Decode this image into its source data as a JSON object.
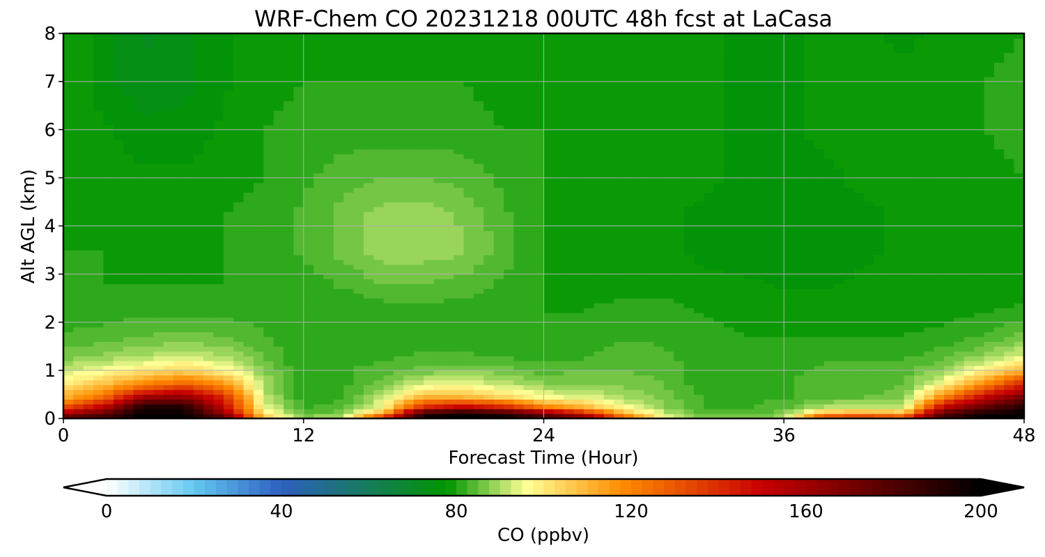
{
  "chart_data": {
    "type": "heatmap",
    "title": "WRF-Chem CO  20231218 00UTC 48h fcst at LaCasa",
    "xlabel": "Forecast Time (Hour)",
    "ylabel": "Alt AGL (km)",
    "xlim": [
      0,
      48
    ],
    "ylim": [
      0,
      8
    ],
    "x_ticks": [
      "0",
      "12",
      "24",
      "36",
      "48"
    ],
    "x_tick_values": [
      0,
      12,
      24,
      36,
      48
    ],
    "y_ticks": [
      "0",
      "1",
      "2",
      "3",
      "4",
      "5",
      "6",
      "7",
      "8"
    ],
    "y_tick_values": [
      0,
      1,
      2,
      3,
      4,
      5,
      6,
      7,
      8
    ],
    "grid": true,
    "colorbar": {
      "label": "CO  (ppbv)",
      "ticks": [
        "0",
        "40",
        "80",
        "120",
        "160",
        "200"
      ],
      "tick_values": [
        0,
        40,
        80,
        120,
        160,
        200
      ],
      "range": [
        0,
        200
      ],
      "extend": "both",
      "colors": [
        "#ffffff",
        "#64c8f0",
        "#2d5fc0",
        "#009600",
        "#ffff96",
        "#ff8c00",
        "#c80000",
        "#000000"
      ],
      "color_stops": [
        0,
        20,
        40,
        78,
        96,
        118,
        150,
        200
      ]
    },
    "x_hours": [
      0,
      2,
      4,
      6,
      8,
      10,
      12,
      14,
      16,
      18,
      20,
      22,
      24,
      26,
      28,
      30,
      32,
      34,
      36,
      38,
      40,
      42,
      44,
      46,
      48
    ],
    "z_km": [
      0,
      0.1,
      0.25,
      0.45,
      0.7,
      1.0,
      1.3,
      1.7,
      2.2,
      2.8,
      3.5,
      4.2,
      5.0,
      6.0,
      7.0,
      8.0
    ],
    "co_ppbv": [
      [
        185,
        190,
        200,
        200,
        185,
        110,
        88,
        94,
        150,
        200,
        200,
        200,
        190,
        175,
        135,
        98,
        88,
        88,
        90,
        145,
        150,
        140,
        190,
        200,
        200
      ],
      [
        160,
        175,
        200,
        200,
        165,
        100,
        84,
        86,
        110,
        190,
        200,
        190,
        170,
        145,
        110,
        92,
        84,
        84,
        86,
        110,
        115,
        110,
        180,
        195,
        200
      ],
      [
        130,
        150,
        190,
        190,
        150,
        95,
        82,
        84,
        96,
        140,
        150,
        140,
        120,
        110,
        96,
        88,
        82,
        82,
        84,
        90,
        92,
        92,
        150,
        175,
        190
      ],
      [
        110,
        125,
        160,
        165,
        140,
        92,
        80,
        82,
        92,
        110,
        110,
        104,
        96,
        94,
        90,
        86,
        82,
        82,
        82,
        84,
        85,
        86,
        120,
        150,
        170
      ],
      [
        100,
        108,
        120,
        130,
        118,
        90,
        80,
        82,
        86,
        94,
        95,
        92,
        88,
        88,
        87,
        85,
        81,
        81,
        82,
        84,
        84,
        85,
        98,
        120,
        145
      ],
      [
        92,
        96,
        100,
        104,
        98,
        88,
        80,
        82,
        84,
        86,
        87,
        86,
        84,
        85,
        85,
        84,
        81,
        81,
        82,
        83,
        83,
        84,
        88,
        98,
        110
      ],
      [
        86,
        88,
        90,
        92,
        90,
        85,
        80,
        81,
        82,
        83,
        83,
        82,
        81,
        82,
        84,
        83,
        81,
        81,
        81,
        82,
        82,
        82,
        84,
        88,
        94
      ],
      [
        83,
        84,
        85,
        86,
        85,
        83,
        80,
        80,
        81,
        81,
        81,
        81,
        80,
        81,
        82,
        82,
        81,
        80,
        80,
        80,
        80,
        80,
        81,
        83,
        86
      ],
      [
        81,
        81,
        82,
        82,
        82,
        81,
        80,
        80,
        81,
        81,
        81,
        80,
        80,
        80,
        81,
        81,
        80,
        79,
        79,
        79,
        79,
        79,
        79,
        80,
        81
      ],
      [
        80,
        80,
        80,
        80,
        80,
        80,
        81,
        83,
        85,
        85,
        84,
        82,
        80,
        79,
        79,
        79,
        78,
        78,
        77,
        77,
        78,
        78,
        78,
        78,
        78
      ],
      [
        80,
        80,
        79,
        79,
        80,
        81,
        83,
        86,
        89,
        89,
        88,
        84,
        80,
        78,
        78,
        78,
        77,
        76,
        76,
        77,
        77,
        78,
        78,
        78,
        78
      ],
      [
        80,
        79,
        79,
        79,
        80,
        81,
        83,
        86,
        89,
        89,
        87,
        83,
        80,
        78,
        78,
        78,
        77,
        76,
        76,
        77,
        77,
        78,
        78,
        78,
        78
      ],
      [
        80,
        79,
        78,
        78,
        79,
        80,
        82,
        84,
        85,
        85,
        84,
        82,
        80,
        79,
        78,
        78,
        78,
        77,
        77,
        77,
        78,
        78,
        78,
        79,
        80
      ],
      [
        80,
        78,
        76,
        76,
        78,
        80,
        81,
        81,
        81,
        81,
        81,
        80,
        80,
        79,
        78,
        78,
        78,
        77,
        77,
        78,
        78,
        78,
        79,
        80,
        81
      ],
      [
        80,
        76,
        73,
        74,
        77,
        79,
        80,
        80,
        80,
        80,
        80,
        79,
        79,
        78,
        78,
        78,
        78,
        77,
        77,
        78,
        78,
        78,
        79,
        80,
        81
      ],
      [
        80,
        76,
        72,
        74,
        77,
        79,
        80,
        79,
        79,
        79,
        79,
        79,
        79,
        78,
        78,
        78,
        78,
        77,
        77,
        78,
        78,
        77,
        78,
        79,
        80
      ]
    ]
  }
}
